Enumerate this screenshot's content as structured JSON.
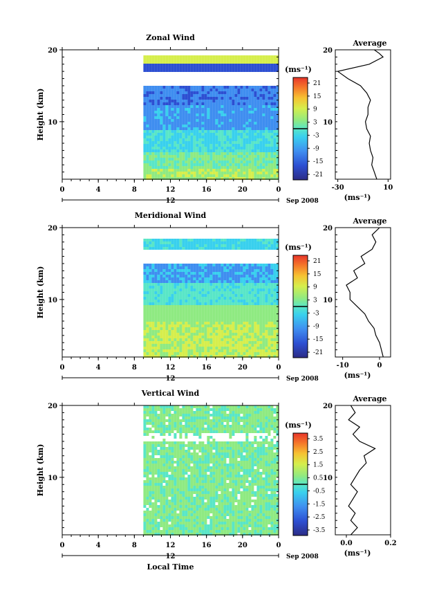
{
  "chart_data": [
    {
      "type": "heatmap",
      "title": "Zonal Wind",
      "ylabel": "Height (km)",
      "ylim": [
        2,
        20
      ],
      "yticks": [
        10,
        20
      ],
      "xlim": [
        0,
        24
      ],
      "xticks": [
        "0",
        "4",
        "8",
        "12",
        "16",
        "20",
        "0"
      ],
      "xticks_secondary": [
        "12"
      ],
      "date_label": "Sep 2008",
      "colorbar": {
        "unit": "(ms⁻¹)",
        "ticks": [
          "21",
          "15",
          "9",
          "3",
          "-3",
          "-9",
          "-15",
          "-21"
        ],
        "range": [
          -24,
          24
        ]
      },
      "data_start_hour": 9,
      "profile": {
        "title": "Average",
        "xlabel": "(ms⁻¹)",
        "xticks": [
          "-30",
          "10"
        ],
        "xlim": [
          -32,
          12
        ],
        "height": [
          2,
          3,
          4,
          5,
          6,
          7,
          8,
          9,
          10,
          11,
          12,
          13,
          14,
          15,
          16,
          17,
          18,
          19,
          19.5,
          20
        ],
        "values": [
          1,
          -1,
          -3,
          -2,
          -4,
          -5,
          -4,
          -7,
          -8,
          -6,
          -6,
          -4,
          -7,
          -12,
          -22,
          -30,
          -5,
          6,
          3,
          -1
        ]
      }
    },
    {
      "type": "heatmap",
      "title": "Meridional Wind",
      "ylabel": "Height (km)",
      "ylim": [
        2,
        20
      ],
      "yticks": [
        10,
        20
      ],
      "xlim": [
        0,
        24
      ],
      "xticks": [
        "0",
        "4",
        "8",
        "12",
        "16",
        "20",
        "0"
      ],
      "xticks_secondary": [
        "12"
      ],
      "date_label": "Sep 2008",
      "colorbar": {
        "unit": "(ms⁻¹)",
        "ticks": [
          "21",
          "15",
          "9",
          "3",
          "-3",
          "-9",
          "-15",
          "-21"
        ],
        "range": [
          -24,
          24
        ]
      },
      "data_start_hour": 9,
      "profile": {
        "title": "Average",
        "xlabel": "(ms⁻¹)",
        "xticks": [
          "-10",
          "0"
        ],
        "xlim": [
          -12,
          3
        ],
        "height": [
          2,
          3,
          4,
          5,
          6,
          7,
          8,
          9,
          10,
          11,
          12,
          13,
          14,
          15,
          16,
          17,
          18,
          19,
          20
        ],
        "values": [
          1,
          0.5,
          0,
          -1,
          -1.5,
          -3,
          -4,
          -6,
          -8,
          -8,
          -9,
          -6,
          -7,
          -4,
          -5,
          -2,
          -1,
          -2,
          0
        ]
      }
    },
    {
      "type": "heatmap",
      "title": "Vertical Wind",
      "ylabel": "Height (km)",
      "ylim": [
        2,
        20
      ],
      "yticks": [
        10,
        20
      ],
      "xlim": [
        0,
        24
      ],
      "xticks": [
        "0",
        "4",
        "8",
        "12",
        "16",
        "20",
        "0"
      ],
      "xticks_secondary": [
        "12"
      ],
      "xlabel": "Local Time",
      "date_label": "Sep 2008",
      "colorbar": {
        "unit": "(ms⁻¹)",
        "ticks": [
          "3.5",
          "2.5",
          "1.5",
          "0.5",
          "-0.5",
          "-1.5",
          "-2.5",
          "-3.5"
        ],
        "range": [
          -4,
          4
        ]
      },
      "data_start_hour": 9,
      "profile": {
        "title": "Average",
        "xlabel": "(ms⁻¹)",
        "xticks": [
          "0.0",
          "0.2"
        ],
        "xlim": [
          -0.05,
          0.2
        ],
        "height": [
          2,
          3,
          4,
          5,
          6,
          7,
          8,
          9,
          10,
          11,
          12,
          13,
          14,
          15,
          16,
          17,
          18,
          19,
          20
        ],
        "values": [
          0.02,
          0.05,
          0.02,
          0.04,
          0.01,
          0.03,
          0.05,
          0.02,
          0.04,
          0.06,
          0.09,
          0.08,
          0.13,
          0.06,
          0.03,
          0.06,
          0.01,
          0.04,
          0.02
        ]
      }
    }
  ]
}
